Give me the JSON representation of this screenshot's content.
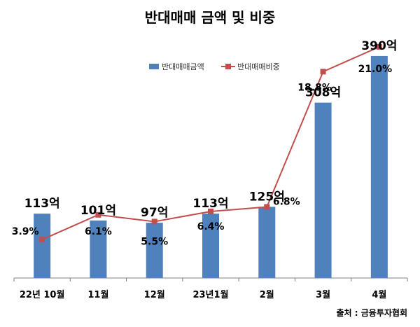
{
  "chart_data": {
    "type": "bar",
    "title": "반대매매 금액 및 비중",
    "categories": [
      "22년  10월",
      "11월",
      "12월",
      "23년1월",
      "2월",
      "3월",
      "4월"
    ],
    "series": [
      {
        "name": "반대매매금액",
        "type": "bar",
        "color": "#4F81BD",
        "values": [
          113,
          101,
          97,
          113,
          125,
          308,
          390
        ],
        "labels": [
          "113억",
          "101억",
          "97억",
          "113억",
          "125억",
          "308억",
          "390억"
        ]
      },
      {
        "name": "반대매매비중",
        "type": "line",
        "color": "#C0504D",
        "values": [
          3.9,
          6.1,
          5.5,
          6.4,
          6.8,
          18.8,
          21.0
        ],
        "labels": [
          "3.9%",
          "6.1%",
          "5.5%",
          "6.4%",
          "6.8%",
          "18.8%",
          "21.0%"
        ]
      }
    ],
    "legend_position": "top-center",
    "grid": false
  },
  "source": "출처 : 금융투자협회"
}
